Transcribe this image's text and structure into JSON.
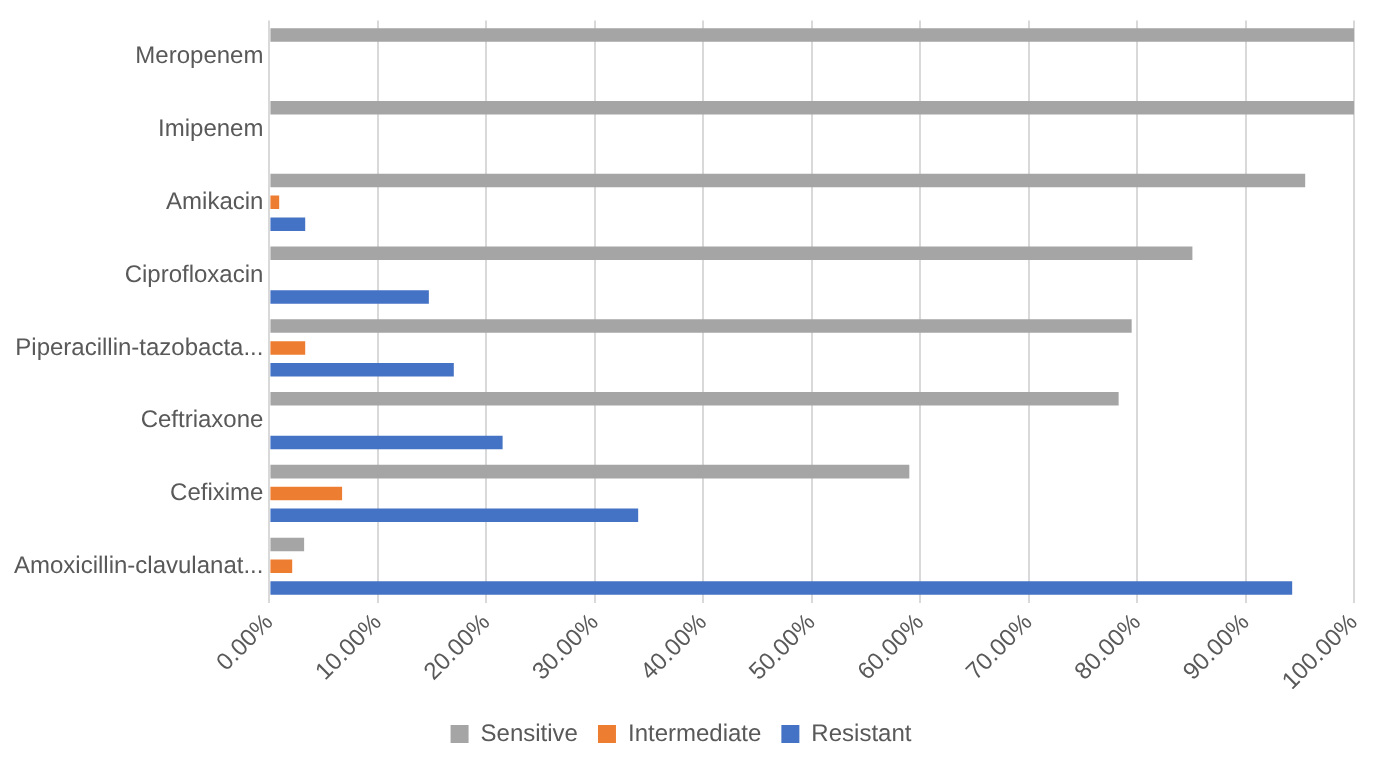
{
  "chart_data": {
    "type": "bar",
    "orientation": "horizontal",
    "categories": [
      "Meropenem",
      "Imipenem",
      "Amikacin",
      "Ciprofloxacin",
      "Piperacillin-tazobacta...",
      "Ceftriaxone",
      "Cefixime",
      "Amoxicillin-clavulanat..."
    ],
    "series": [
      {
        "name": "Sensitive",
        "color": "#a5a5a5",
        "values": [
          100,
          100,
          95.5,
          85.1,
          79.5,
          78.3,
          59.0,
          3.2
        ]
      },
      {
        "name": "Intermediate",
        "color": "#ed7d31",
        "values": [
          0,
          0,
          0.9,
          0,
          3.3,
          0,
          6.7,
          2.1
        ]
      },
      {
        "name": "Resistant",
        "color": "#4472c4",
        "values": [
          0,
          0,
          3.3,
          14.7,
          17.0,
          21.5,
          34.0,
          94.3
        ]
      }
    ],
    "xlim": [
      0,
      100
    ],
    "xticks": [
      {
        "value": 0,
        "label": "0.00%"
      },
      {
        "value": 10,
        "label": "10.00%"
      },
      {
        "value": 20,
        "label": "20.00%"
      },
      {
        "value": 30,
        "label": "30.00%"
      },
      {
        "value": 40,
        "label": "40.00%"
      },
      {
        "value": 50,
        "label": "50.00%"
      },
      {
        "value": 60,
        "label": "60.00%"
      },
      {
        "value": 70,
        "label": "70.00%"
      },
      {
        "value": 80,
        "label": "80.00%"
      },
      {
        "value": 90,
        "label": "90.00%"
      },
      {
        "value": 100,
        "label": "100.00%"
      }
    ],
    "grid": "x",
    "legend": "bottom"
  }
}
